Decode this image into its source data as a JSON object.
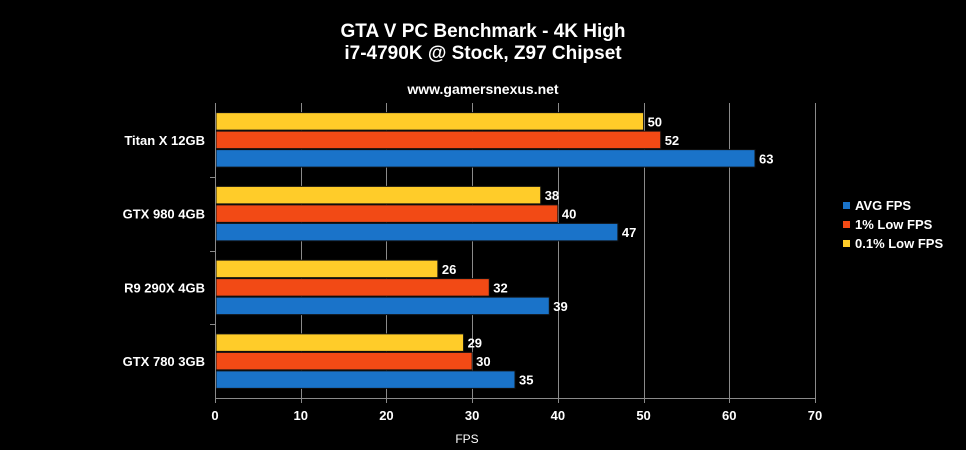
{
  "chart_data": {
    "type": "bar",
    "orientation": "horizontal",
    "title": "GTA V PC Benchmark - 4K High",
    "subtitle": "i7-4790K @ Stock, Z97 Chipset",
    "watermark": "www.gamersnexus.net",
    "xlabel": "FPS",
    "ylabel": "",
    "xlim": [
      0,
      70
    ],
    "xticks": [
      0,
      10,
      20,
      30,
      40,
      50,
      60,
      70
    ],
    "grid": true,
    "legend_position": "right",
    "categories": [
      "Titan X 12GB",
      "GTX 980 4GB",
      "R9 290X 4GB",
      "GTX 780 3GB"
    ],
    "series": [
      {
        "name": "AVG FPS",
        "color": "#1a73c9",
        "values": [
          63,
          47,
          39,
          35
        ]
      },
      {
        "name": "1% Low FPS",
        "color": "#f24a15",
        "values": [
          52,
          40,
          32,
          30
        ]
      },
      {
        "name": "0.1% Low FPS",
        "color": "#ffcc29",
        "values": [
          50,
          38,
          26,
          29
        ]
      }
    ]
  }
}
